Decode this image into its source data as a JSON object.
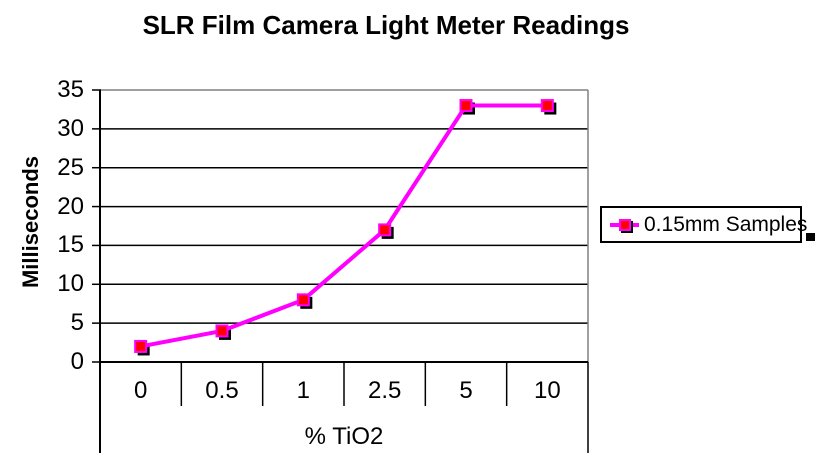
{
  "title": "SLR Film Camera Light Meter Readings",
  "legend": {
    "label": "0.15mm Samples",
    "trailing_artifact": "black-square-dot"
  },
  "chart_data": {
    "type": "line",
    "title": "SLR Film Camera Light Meter Readings",
    "categories": [
      "0",
      "0.5",
      "1",
      "2.5",
      "5",
      "10"
    ],
    "series": [
      {
        "name": "0.15mm Samples",
        "values": [
          2,
          4,
          8,
          17,
          33,
          33
        ],
        "line_color": "#FF00FF",
        "marker_color": "#FF0000",
        "marker_border_color": "#FF00FF",
        "marker_shadow_color": "#000000"
      }
    ],
    "xlabel": "% TiO2",
    "ylabel": "Milliseconds",
    "ylim": [
      0,
      35
    ],
    "y_ticks": [
      0,
      5,
      10,
      15,
      20,
      25,
      30,
      35
    ],
    "grid": true,
    "legend_position": "right"
  },
  "colors": {
    "background": "#FFFFFF",
    "plot_border": "#808080",
    "gridline": "#000000",
    "axis": "#000000",
    "text": "#000000"
  }
}
